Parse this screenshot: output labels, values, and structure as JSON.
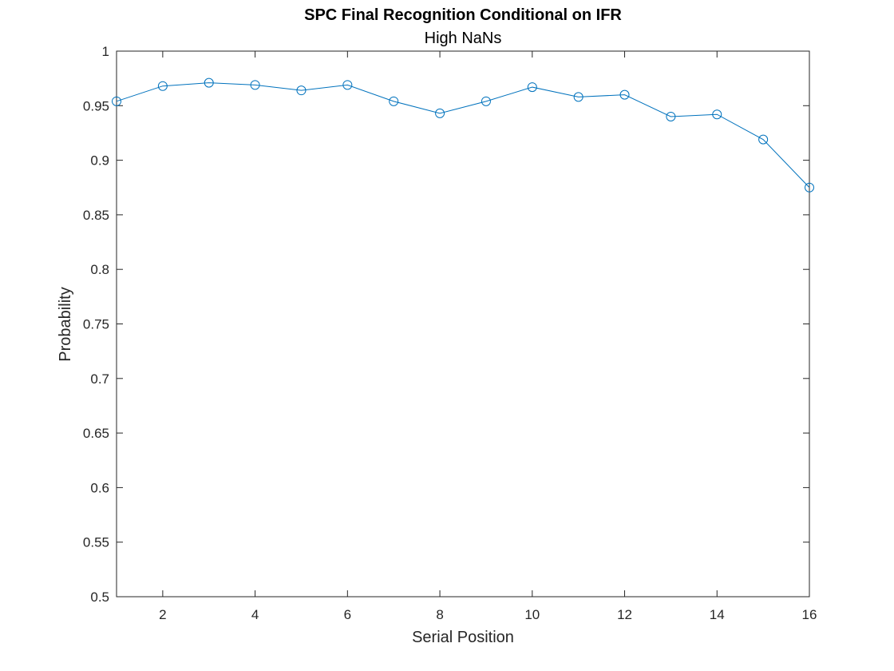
{
  "chart_data": {
    "type": "line",
    "title": "SPC Final Recognition Conditional on IFR",
    "subtitle": "High NaNs",
    "xlabel": "Serial Position",
    "ylabel": "Probability",
    "xlim": [
      1,
      16
    ],
    "ylim": [
      0.5,
      1
    ],
    "xticks": [
      2,
      4,
      6,
      8,
      10,
      12,
      14,
      16
    ],
    "xtick_labels": [
      "2",
      "4",
      "6",
      "8",
      "10",
      "12",
      "14",
      "16"
    ],
    "yticks": [
      0.5,
      0.55,
      0.6,
      0.65,
      0.7,
      0.75,
      0.8,
      0.85,
      0.9,
      0.95,
      1
    ],
    "ytick_labels": [
      "0.5",
      "0.55",
      "0.6",
      "0.65",
      "0.7",
      "0.75",
      "0.8",
      "0.85",
      "0.9",
      "0.95",
      "1"
    ],
    "grid": false,
    "marker": "circle",
    "color": "#0072BD",
    "x": [
      1,
      2,
      3,
      4,
      5,
      6,
      7,
      8,
      9,
      10,
      11,
      12,
      13,
      14,
      15,
      16
    ],
    "y": [
      0.954,
      0.968,
      0.971,
      0.969,
      0.964,
      0.969,
      0.954,
      0.943,
      0.954,
      0.967,
      0.958,
      0.96,
      0.94,
      0.942,
      0.919,
      0.875
    ]
  }
}
